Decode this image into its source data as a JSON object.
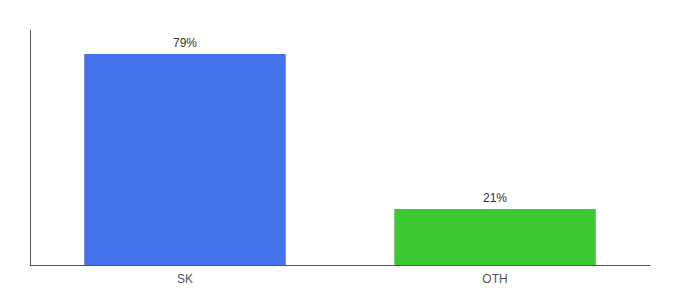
{
  "chart_data": {
    "type": "bar",
    "categories": [
      "SK",
      "OTH"
    ],
    "values": [
      79,
      21
    ],
    "value_labels": [
      "79%",
      "21%"
    ],
    "colors": [
      "#4472EA",
      "#3CC832"
    ],
    "ylim": [
      0,
      88
    ],
    "grid": false,
    "data_labels": true,
    "tick_labels": "x"
  }
}
